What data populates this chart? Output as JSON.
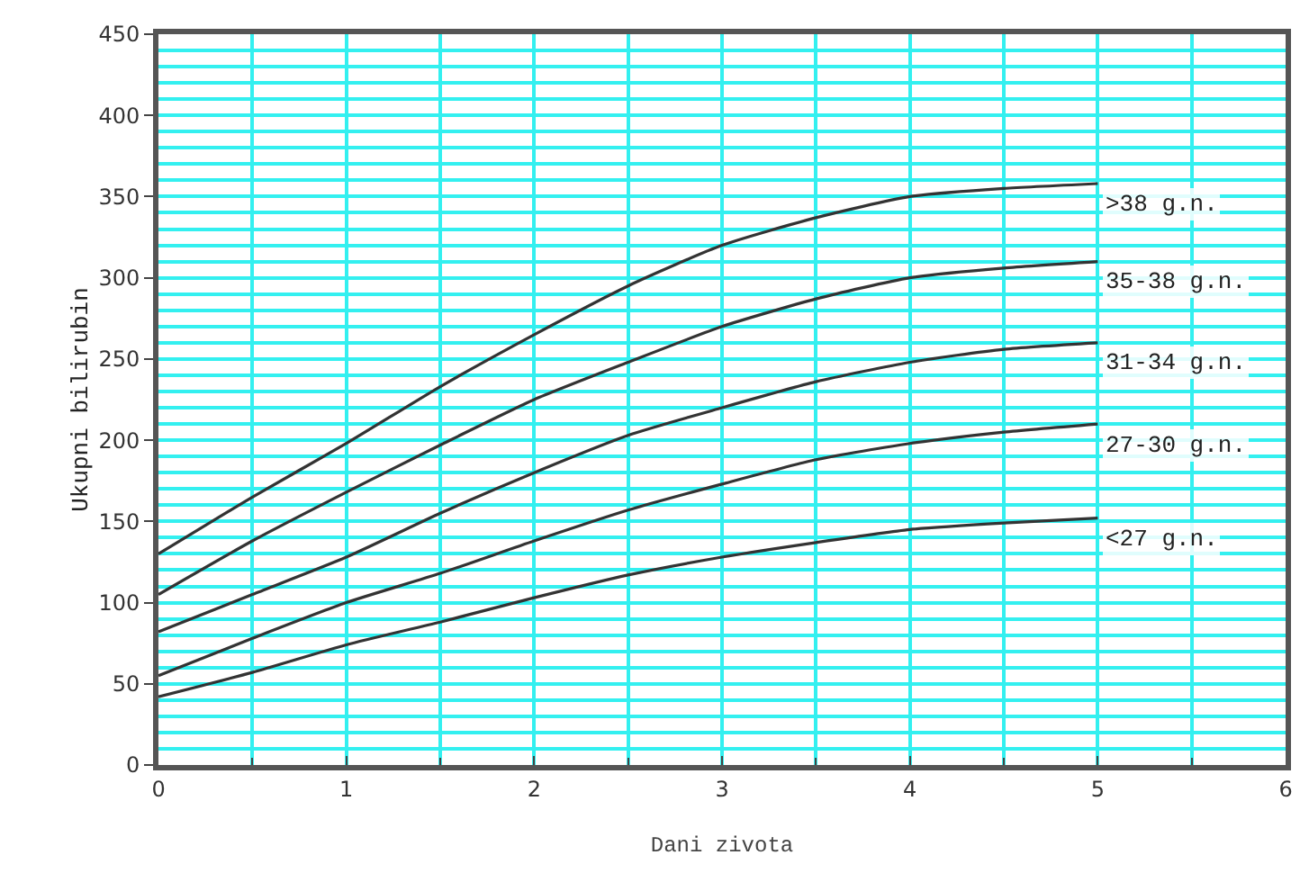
{
  "chart_data": {
    "type": "line",
    "xlabel": "Dani zivota",
    "ylabel": "Ukupni bilirubin",
    "x": [
      0,
      0.5,
      1,
      1.5,
      2,
      2.5,
      3,
      3.5,
      4,
      4.5,
      5
    ],
    "series": [
      {
        "name": ">38 g.n.",
        "color": "#333333",
        "values": [
          130,
          165,
          198,
          233,
          265,
          295,
          320,
          337,
          350,
          355,
          358
        ]
      },
      {
        "name": "35-38 g.n.",
        "color": "#333333",
        "values": [
          105,
          138,
          168,
          197,
          225,
          248,
          270,
          287,
          300,
          306,
          310
        ]
      },
      {
        "name": "31-34 g.n.",
        "color": "#333333",
        "values": [
          82,
          105,
          128,
          155,
          180,
          203,
          220,
          236,
          248,
          256,
          260
        ]
      },
      {
        "name": "27-30 g.n.",
        "color": "#333333",
        "values": [
          55,
          78,
          100,
          118,
          138,
          157,
          173,
          188,
          198,
          205,
          210
        ]
      },
      {
        "name": "<27 g.n.",
        "color": "#333333",
        "values": [
          42,
          57,
          74,
          88,
          103,
          117,
          128,
          137,
          145,
          149,
          152
        ]
      }
    ],
    "xlim": [
      0,
      6
    ],
    "xticks": [
      0,
      1,
      2,
      3,
      4,
      5,
      6
    ],
    "ylim": [
      0,
      450
    ],
    "yticks": [
      0,
      50,
      100,
      150,
      200,
      250,
      300,
      350,
      400,
      450
    ],
    "grid": true,
    "legend": false,
    "marker": "none",
    "line_style": "solid"
  }
}
